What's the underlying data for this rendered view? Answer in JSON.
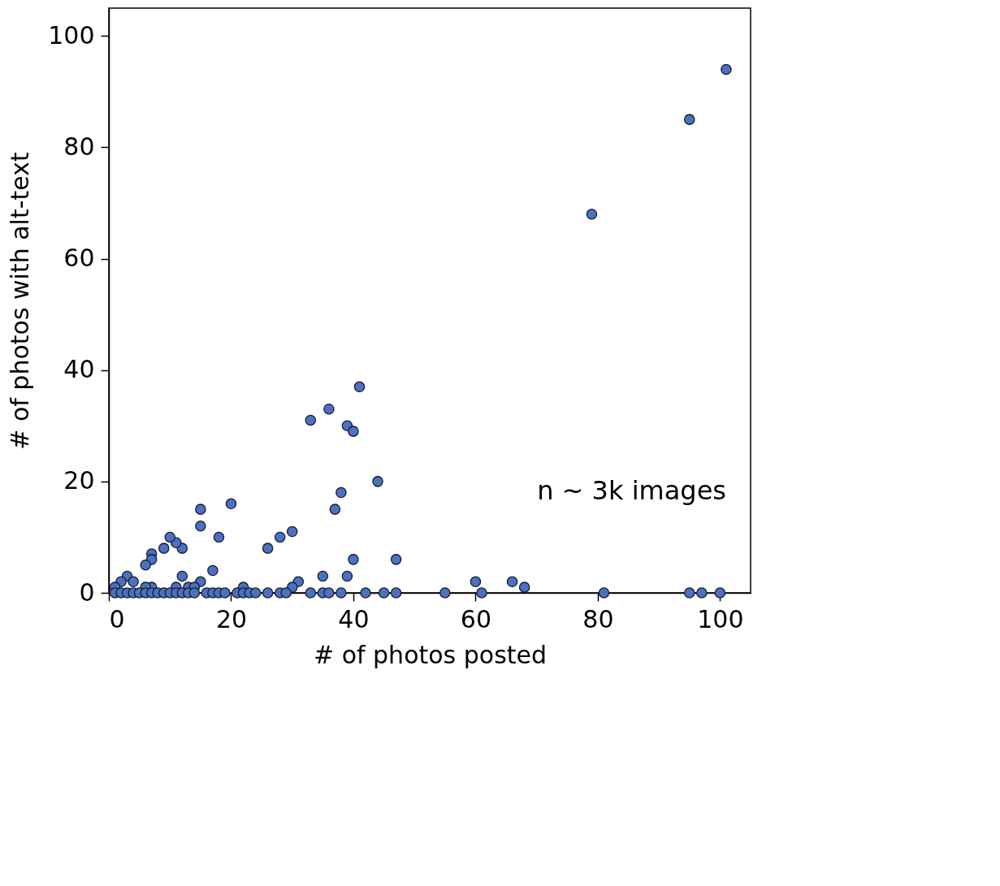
{
  "chart_data": {
    "type": "scatter",
    "xlabel": "# of photos posted",
    "ylabel": "# of photos with alt-text",
    "x": [
      101,
      95,
      79,
      41,
      36,
      33,
      39,
      40,
      44,
      38,
      37,
      40,
      47,
      39,
      35,
      31,
      30,
      30,
      28,
      26,
      20,
      18,
      17,
      15,
      15,
      15,
      12,
      11,
      10,
      9,
      7,
      7,
      6,
      12,
      11,
      13,
      14,
      22,
      7,
      6,
      3,
      2,
      4,
      1,
      60,
      66,
      68,
      1,
      2,
      3,
      4,
      5,
      6,
      7,
      8,
      9,
      10,
      11,
      12,
      13,
      14,
      16,
      17,
      18,
      19,
      21,
      22,
      23,
      24,
      26,
      28,
      29,
      33,
      35,
      36,
      38,
      42,
      45,
      47,
      55,
      61,
      81,
      95,
      97,
      100
    ],
    "series": [
      {
        "color": "#4a72c0",
        "values": [
          94,
          85,
          68,
          37,
          33,
          31,
          30,
          29,
          20,
          18,
          15,
          6,
          6,
          3,
          3,
          2,
          1,
          11,
          10,
          8,
          16,
          10,
          4,
          15,
          12,
          2,
          8,
          9,
          10,
          8,
          7,
          6,
          5,
          3,
          1,
          1,
          1,
          1,
          1,
          1,
          3,
          2,
          2,
          1,
          2,
          2,
          1,
          0,
          0,
          0,
          0,
          0,
          0,
          0,
          0,
          0,
          0,
          0,
          0,
          0,
          0,
          0,
          0,
          0,
          0,
          0,
          0,
          0,
          0,
          0,
          0,
          0,
          0,
          0,
          0,
          0,
          0,
          0,
          0,
          0,
          0,
          0,
          0,
          0,
          0
        ]
      }
    ],
    "xlim": [
      0,
      105
    ],
    "ylim": [
      0,
      105
    ],
    "xticks": [
      0,
      20,
      40,
      60,
      80,
      100
    ],
    "yticks": [
      0,
      20,
      40,
      60,
      80,
      100
    ],
    "marker": "circle",
    "annotations": [
      "n ~ 3k images"
    ]
  }
}
